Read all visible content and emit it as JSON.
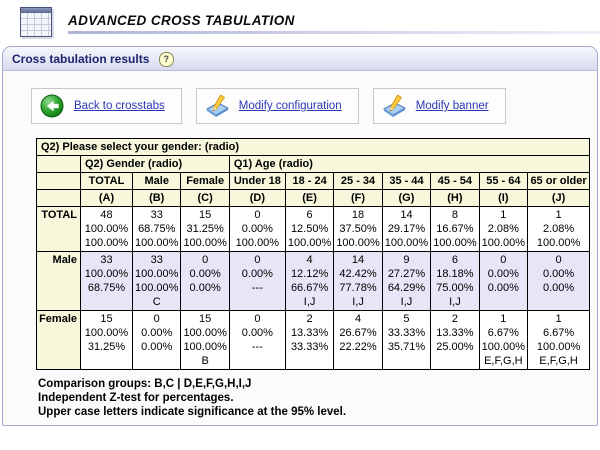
{
  "page": {
    "title": "ADVANCED CROSS TABULATION"
  },
  "panel": {
    "title": "Cross tabulation results",
    "help_label": "?"
  },
  "toolbar": {
    "buttons": [
      {
        "label": "Back to crosstabs",
        "icon": "green-back-arrow"
      },
      {
        "label": "Modify configuration",
        "icon": "edit-pad-pencil"
      },
      {
        "label": "Modify banner",
        "icon": "edit-pad-pencil"
      }
    ]
  },
  "crosstab": {
    "question_title": "Q2) Please select your gender: (radio)",
    "banner_groups": [
      {
        "label": "Q2) Gender (radio)",
        "span": 3
      },
      {
        "label": "Q1) Age (radio)",
        "span": 7
      }
    ],
    "column_headers": [
      "TOTAL",
      "Male",
      "Female",
      "Under 18",
      "18 - 24",
      "25 - 34",
      "35 - 44",
      "45 - 54",
      "55 - 64",
      "65 or older"
    ],
    "column_letters": [
      "(A)",
      "(B)",
      "(C)",
      "(D)",
      "(E)",
      "(F)",
      "(G)",
      "(H)",
      "(I)",
      "(J)"
    ],
    "rows": [
      {
        "label": "TOTAL",
        "highlighted": false,
        "cells": [
          [
            "48",
            "100.00%",
            "100.00%"
          ],
          [
            "33",
            "68.75%",
            "100.00%"
          ],
          [
            "15",
            "31.25%",
            "100.00%"
          ],
          [
            "0",
            "0.00%",
            "100.00%"
          ],
          [
            "6",
            "12.50%",
            "100.00%"
          ],
          [
            "18",
            "37.50%",
            "100.00%"
          ],
          [
            "14",
            "29.17%",
            "100.00%"
          ],
          [
            "8",
            "16.67%",
            "100.00%"
          ],
          [
            "1",
            "2.08%",
            "100.00%"
          ],
          [
            "1",
            "2.08%",
            "100.00%"
          ]
        ]
      },
      {
        "label": "Male",
        "highlighted": true,
        "cells": [
          [
            "33",
            "100.00%",
            "68.75%"
          ],
          [
            "33",
            "100.00%",
            "100.00%",
            "C"
          ],
          [
            "0",
            "0.00%",
            "0.00%"
          ],
          [
            "0",
            "0.00%",
            "---"
          ],
          [
            "4",
            "12.12%",
            "66.67%",
            "I,J"
          ],
          [
            "14",
            "42.42%",
            "77.78%",
            "I,J"
          ],
          [
            "9",
            "27.27%",
            "64.29%",
            "I,J"
          ],
          [
            "6",
            "18.18%",
            "75.00%",
            "I,J"
          ],
          [
            "0",
            "0.00%",
            "0.00%"
          ],
          [
            "0",
            "0.00%",
            "0.00%"
          ]
        ]
      },
      {
        "label": "Female",
        "highlighted": false,
        "cells": [
          [
            "15",
            "100.00%",
            "31.25%"
          ],
          [
            "0",
            "0.00%",
            "0.00%"
          ],
          [
            "15",
            "100.00%",
            "100.00%",
            "B"
          ],
          [
            "0",
            "0.00%",
            "---"
          ],
          [
            "2",
            "13.33%",
            "33.33%"
          ],
          [
            "4",
            "26.67%",
            "22.22%"
          ],
          [
            "5",
            "33.33%",
            "35.71%"
          ],
          [
            "2",
            "13.33%",
            "25.00%"
          ],
          [
            "1",
            "6.67%",
            "100.00%",
            "E,F,G,H"
          ],
          [
            "1",
            "6.67%",
            "100.00%",
            "E,F,G,H"
          ]
        ]
      }
    ]
  },
  "footnotes": [
    "Comparison groups: B,C | D,E,F,G,H,I,J",
    "Independent Z-test for percentages.",
    "Upper case letters indicate significance at the 95% level."
  ],
  "colors": {
    "header_cream": "#f7f7dc",
    "row_highlight": "#e6e6f6",
    "panel_border": "#a2a9d2",
    "link_blue": "#2b38b5",
    "title_navy": "#1e2370"
  }
}
